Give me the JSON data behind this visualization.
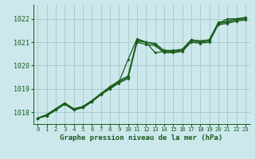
{
  "title": "Graphe pression niveau de la mer (hPa)",
  "bg_color": "#cce8ec",
  "grid_color": "#aacccc",
  "line_color": "#1a5c1a",
  "xlim": [
    -0.5,
    23.5
  ],
  "ylim": [
    1017.5,
    1022.6
  ],
  "yticks": [
    1018,
    1019,
    1020,
    1021,
    1022
  ],
  "xticks": [
    0,
    1,
    2,
    3,
    4,
    5,
    6,
    7,
    8,
    9,
    10,
    11,
    12,
    13,
    14,
    15,
    16,
    17,
    18,
    19,
    20,
    21,
    22,
    23
  ],
  "series_a": [
    1017.75,
    1017.85,
    1018.1,
    1018.35,
    1018.1,
    1018.2,
    1018.45,
    1018.75,
    1019.0,
    1019.25,
    1019.45,
    1021.0,
    1020.9,
    1020.85,
    1020.55,
    1020.55,
    1020.6,
    1021.0,
    1020.95,
    1021.0,
    1021.75,
    1021.8,
    1021.9,
    1021.95
  ],
  "series_b": [
    1017.75,
    1017.9,
    1018.15,
    1018.4,
    1018.15,
    1018.25,
    1018.5,
    1018.8,
    1019.05,
    1019.3,
    1019.5,
    1021.05,
    1021.0,
    1020.9,
    1020.6,
    1020.6,
    1020.65,
    1021.05,
    1021.0,
    1021.05,
    1021.8,
    1021.85,
    1021.95,
    1022.0
  ],
  "series_c": [
    1017.75,
    1017.9,
    1018.15,
    1018.4,
    1018.15,
    1018.25,
    1018.5,
    1018.8,
    1019.1,
    1019.35,
    1019.55,
    1021.1,
    1021.0,
    1020.95,
    1020.65,
    1020.65,
    1020.7,
    1021.1,
    1021.05,
    1021.1,
    1021.85,
    1021.9,
    1022.0,
    1022.05
  ],
  "series_main": [
    1017.75,
    1017.85,
    1018.1,
    1018.35,
    1018.1,
    1018.2,
    1018.45,
    1018.8,
    1019.05,
    1019.3,
    1020.25,
    1021.15,
    1021.0,
    1020.55,
    1020.6,
    1020.6,
    1020.65,
    1021.1,
    1021.05,
    1021.1,
    1021.8,
    1022.0,
    1022.0,
    1022.05
  ]
}
